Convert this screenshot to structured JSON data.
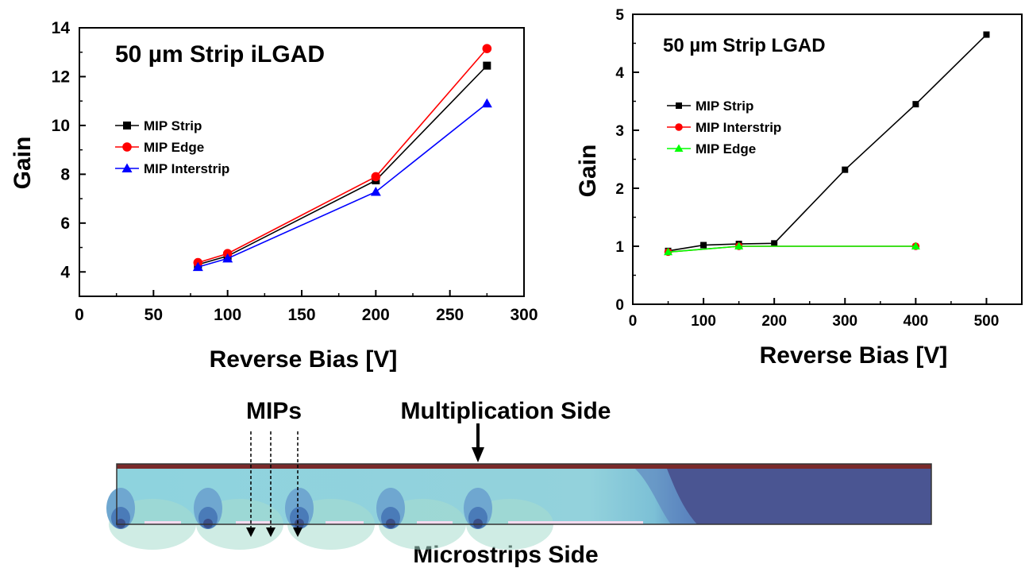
{
  "chart_data": [
    {
      "type": "line",
      "title": "50 µm Strip iLGAD",
      "xlabel": "Reverse Bias [V]",
      "ylabel": "Gain",
      "xlim": [
        0,
        300
      ],
      "ylim": [
        3,
        14
      ],
      "xticks": [
        0,
        50,
        100,
        150,
        200,
        250,
        300
      ],
      "yticks": [
        4,
        6,
        8,
        10,
        12,
        14
      ],
      "grid": false,
      "legend_position": "left",
      "series": [
        {
          "name": "MIP Strip",
          "color": "#000000",
          "marker": "square",
          "x": [
            80,
            100,
            200,
            275
          ],
          "y": [
            4.3,
            4.65,
            7.75,
            12.45
          ]
        },
        {
          "name": "MIP Edge",
          "color": "#ff0000",
          "marker": "circle",
          "x": [
            80,
            100,
            200,
            275
          ],
          "y": [
            4.38,
            4.75,
            7.9,
            13.15
          ]
        },
        {
          "name": "MIP Interstrip",
          "color": "#0000ff",
          "marker": "triangle",
          "x": [
            80,
            100,
            200,
            275
          ],
          "y": [
            4.2,
            4.55,
            7.28,
            10.9
          ]
        }
      ]
    },
    {
      "type": "line",
      "title": "50 µm Strip LGAD",
      "xlabel": "Reverse Bias [V]",
      "ylabel": "Gain",
      "xlim": [
        0,
        550
      ],
      "ylim": [
        0,
        5
      ],
      "xticks": [
        0,
        100,
        200,
        300,
        400,
        500
      ],
      "yticks": [
        0,
        1,
        2,
        3,
        4,
        5
      ],
      "grid": false,
      "legend_position": "left",
      "series": [
        {
          "name": "MIP Strip",
          "color": "#000000",
          "marker": "square",
          "x": [
            50,
            100,
            150,
            200,
            300,
            400,
            500
          ],
          "y": [
            0.92,
            1.02,
            1.04,
            1.05,
            2.32,
            3.45,
            4.65
          ]
        },
        {
          "name": "MIP Interstrip",
          "color": "#ff0000",
          "marker": "circle",
          "x": [
            50,
            150,
            400
          ],
          "y": [
            0.9,
            1.0,
            1.0
          ]
        },
        {
          "name": "MIP Edge",
          "color": "#00ff00",
          "marker": "triangle",
          "x": [
            50,
            150,
            400
          ],
          "y": [
            0.9,
            1.0,
            1.0
          ]
        }
      ]
    }
  ],
  "diagram": {
    "mips_label": "MIPs",
    "top_label": "Multiplication Side",
    "bottom_label": "Microstrips Side"
  }
}
